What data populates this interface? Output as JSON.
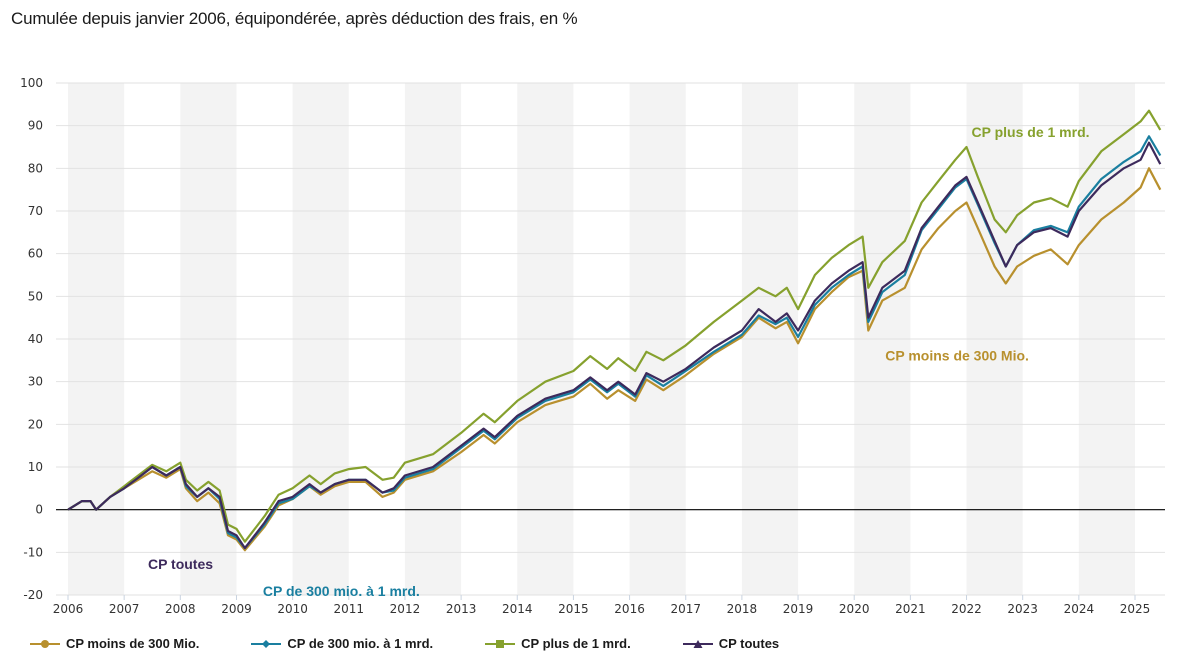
{
  "title": "Cumulée depuis janvier 2006, équipondérée, après déduction des frais, en %",
  "chart_data": {
    "type": "line",
    "title": "Cumulée depuis janvier 2006, équipondérée, après déduction des frais, en %",
    "xlabel": "",
    "ylabel": "",
    "xlim": [
      2006,
      2025.5
    ],
    "ylim": [
      -20,
      100
    ],
    "yticks": [
      -20,
      -10,
      0,
      10,
      20,
      30,
      40,
      50,
      60,
      70,
      80,
      90,
      100
    ],
    "xticks": [
      2006,
      2007,
      2008,
      2009,
      2010,
      2011,
      2012,
      2013,
      2014,
      2015,
      2016,
      2017,
      2018,
      2019,
      2020,
      2021,
      2022,
      2023,
      2024,
      2025
    ],
    "grid": true,
    "alternating_year_bands": true,
    "legend_position": "bottom",
    "x": [
      2006.0,
      2006.25,
      2006.4,
      2006.5,
      2006.75,
      2007.0,
      2007.25,
      2007.5,
      2007.75,
      2008.0,
      2008.1,
      2008.3,
      2008.5,
      2008.7,
      2008.85,
      2009.0,
      2009.15,
      2009.5,
      2009.75,
      2010.0,
      2010.3,
      2010.5,
      2010.75,
      2011.0,
      2011.3,
      2011.6,
      2011.8,
      2012.0,
      2012.5,
      2013.0,
      2013.4,
      2013.6,
      2014.0,
      2014.5,
      2015.0,
      2015.3,
      2015.6,
      2015.8,
      2016.1,
      2016.3,
      2016.6,
      2017.0,
      2017.5,
      2018.0,
      2018.3,
      2018.6,
      2018.8,
      2019.0,
      2019.3,
      2019.6,
      2019.9,
      2020.15,
      2020.25,
      2020.5,
      2020.9,
      2021.2,
      2021.5,
      2021.8,
      2022.0,
      2022.2,
      2022.5,
      2022.7,
      2022.9,
      2023.2,
      2023.5,
      2023.8,
      2024.0,
      2024.4,
      2024.8,
      2025.1,
      2025.25,
      2025.45
    ],
    "series": [
      {
        "name": "CP moins de 300 Mio.",
        "color": "#b8902e",
        "marker": "circle",
        "values": [
          0,
          2,
          2,
          0,
          3,
          5,
          7,
          9,
          7.5,
          9.5,
          5,
          2,
          4,
          1.5,
          -6,
          -7,
          -9.5,
          -4,
          1,
          2.5,
          5.5,
          3.5,
          5.5,
          6.5,
          6.5,
          3,
          4,
          7,
          9,
          13.5,
          17.5,
          15.5,
          20.5,
          24.5,
          26.5,
          29.5,
          26,
          28,
          25.5,
          30.5,
          28,
          31.5,
          36.5,
          40.5,
          45,
          42.5,
          44,
          39,
          47,
          51,
          54.5,
          56,
          42,
          49,
          52,
          61,
          66,
          70,
          72,
          66,
          57,
          53,
          57,
          59.5,
          61,
          57.5,
          62,
          68,
          72,
          75.5,
          80,
          75
        ]
      },
      {
        "name": "CP de 300 mio. à 1 mrd.",
        "color": "#1a7fa0",
        "marker": "diamond",
        "values": [
          0,
          2,
          2,
          0,
          3,
          5,
          7.5,
          10,
          8,
          10,
          5.5,
          3,
          5,
          2.5,
          -5.5,
          -6.5,
          -9,
          -3.5,
          1.5,
          2.5,
          5.5,
          4,
          6,
          7,
          7,
          4,
          4.5,
          7.5,
          9.5,
          14.5,
          18.5,
          16.5,
          21.5,
          25.5,
          27.5,
          30.5,
          27.5,
          29.5,
          26.5,
          31.5,
          29,
          32.5,
          37,
          41,
          45.5,
          43.5,
          45,
          40.5,
          48,
          52,
          55,
          57,
          44,
          51,
          55,
          65.5,
          70.5,
          75.5,
          77.5,
          71.5,
          62.5,
          57,
          62,
          65.5,
          66.5,
          65,
          71,
          77.5,
          81.5,
          84,
          87.5,
          83
        ]
      },
      {
        "name": "CP plus de 1 mrd.",
        "color": "#86a12e",
        "marker": "square",
        "values": [
          0,
          2,
          2,
          0,
          3,
          5.5,
          8,
          10.5,
          9,
          11,
          7,
          4.5,
          6.5,
          4.5,
          -3.5,
          -4.5,
          -7.5,
          -1.5,
          3.5,
          5,
          8,
          6,
          8.5,
          9.5,
          10,
          7,
          7.5,
          11,
          13,
          18,
          22.5,
          20.5,
          25.5,
          30,
          32.5,
          36,
          33,
          35.5,
          32.5,
          37,
          35,
          38.5,
          44,
          49,
          52,
          50,
          52,
          47,
          55,
          59,
          62,
          64,
          52,
          58,
          63,
          72,
          77,
          82,
          85,
          78,
          68,
          65,
          69,
          72,
          73,
          71,
          77,
          84,
          88,
          91,
          93.5,
          89
        ]
      },
      {
        "name": "CP toutes",
        "color": "#3d2a5c",
        "marker": "triangle",
        "values": [
          0,
          2,
          2,
          0,
          3,
          5,
          7.5,
          10,
          8,
          10,
          6,
          3,
          5,
          3,
          -5,
          -6,
          -9,
          -3,
          2,
          3,
          6,
          4,
          6,
          7,
          7,
          4,
          5,
          8,
          10,
          15,
          19,
          17,
          22,
          26,
          28,
          31,
          28,
          30,
          27,
          32,
          30,
          33,
          38,
          42,
          47,
          44,
          46,
          42,
          49,
          53,
          56,
          58,
          45,
          52,
          56,
          66,
          71,
          76,
          78,
          72,
          63,
          57,
          62,
          65,
          66,
          64,
          70,
          76,
          80,
          82,
          86,
          81
        ]
      }
    ],
    "annotations": [
      {
        "text": "CP plus de 1 mrd.",
        "series": "CP plus de 1 mrd.",
        "x": 2022.0,
        "y": 85
      },
      {
        "text": "CP moins de 300 Mio.",
        "series": "CP moins de 300 Mio.",
        "x": 2020.25,
        "y": 42
      },
      {
        "text": "CP toutes",
        "series": "CP toutes",
        "x": 2008.85,
        "y": -5
      },
      {
        "text": "CP de 300 mio. à 1 mrd.",
        "series": "CP de 300 mio. à 1 mrd.",
        "x": 2009.15,
        "y": -9
      }
    ]
  },
  "legend": [
    {
      "label": "CP moins de 300 Mio.",
      "color": "#b8902e",
      "marker": "circle"
    },
    {
      "label": "CP de 300 mio. à 1 mrd.",
      "color": "#1a7fa0",
      "marker": "diamond"
    },
    {
      "label": "CP plus de 1 mrd.",
      "color": "#86a12e",
      "marker": "square"
    },
    {
      "label": "CP toutes",
      "color": "#3d2a5c",
      "marker": "triangle"
    }
  ]
}
